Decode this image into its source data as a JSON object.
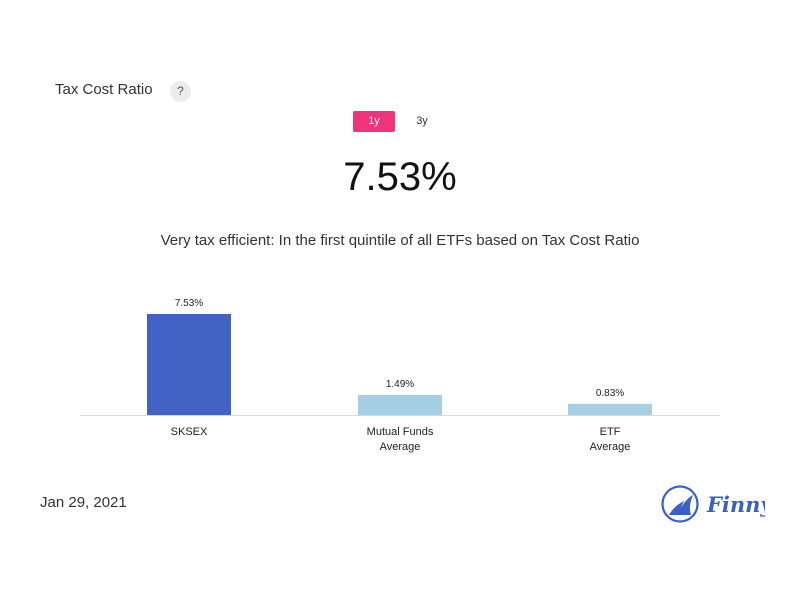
{
  "header": {
    "title": "Tax Cost Ratio",
    "help_glyph": "?"
  },
  "tabs": [
    {
      "label": "1y",
      "active": true
    },
    {
      "label": "3y",
      "active": false
    }
  ],
  "summary": {
    "value": "7.53%",
    "description": "Very tax efficient: In the first quintile of all ETFs based on Tax Cost Ratio"
  },
  "chart_data": {
    "type": "bar",
    "categories": [
      [
        "SKSEX"
      ],
      [
        "Mutual Funds",
        "Average"
      ],
      [
        "ETF",
        "Average"
      ]
    ],
    "values": [
      7.53,
      1.49,
      0.83
    ],
    "labels": [
      "7.53%",
      "1.49%",
      "0.83%"
    ],
    "colors": [
      "#4262c6",
      "#a6cfe6",
      "#a6cfe6"
    ],
    "ylim": [
      0,
      7.53
    ],
    "title": "",
    "xlabel": "",
    "ylabel": "",
    "grid": false
  },
  "footer": {
    "date": "Jan 29, 2021",
    "brand": "Finny"
  },
  "colors": {
    "accent": "#f0337b",
    "primary_bar": "#4262c6",
    "secondary_bar": "#a6cfe6",
    "brand": "#3a5fc8"
  }
}
